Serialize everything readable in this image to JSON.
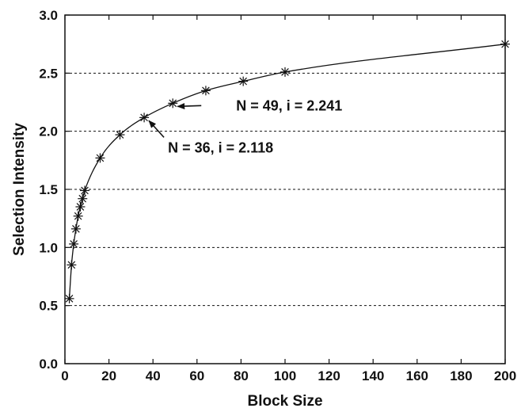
{
  "chart_data": {
    "type": "scatter",
    "xlabel": "Block Size",
    "ylabel": "Selection Intensity",
    "xlim": [
      0,
      200
    ],
    "ylim": [
      0.0,
      3.0
    ],
    "xticks": [
      "0",
      "20",
      "40",
      "60",
      "80",
      "100",
      "120",
      "140",
      "160",
      "180",
      "200"
    ],
    "yticks": [
      "0.0",
      "0.5",
      "1.0",
      "1.5",
      "2.0",
      "2.5",
      "3.0"
    ],
    "grid": "horizontal dashed",
    "points": [
      {
        "x": 2,
        "y": 0.56
      },
      {
        "x": 3,
        "y": 0.85
      },
      {
        "x": 4,
        "y": 1.03
      },
      {
        "x": 5,
        "y": 1.16
      },
      {
        "x": 6,
        "y": 1.27
      },
      {
        "x": 7,
        "y": 1.35
      },
      {
        "x": 8,
        "y": 1.42
      },
      {
        "x": 9,
        "y": 1.49
      },
      {
        "x": 16,
        "y": 1.77
      },
      {
        "x": 25,
        "y": 1.97
      },
      {
        "x": 36,
        "y": 2.118
      },
      {
        "x": 49,
        "y": 2.241
      },
      {
        "x": 64,
        "y": 2.35
      },
      {
        "x": 81,
        "y": 2.43
      },
      {
        "x": 100,
        "y": 2.51
      },
      {
        "x": 200,
        "y": 2.75
      }
    ],
    "annotations": [
      {
        "text": "N = 49,  i = 2.241",
        "x": 49,
        "y": 2.241
      },
      {
        "text": "N = 36,  i = 2.118",
        "x": 36,
        "y": 2.118
      }
    ]
  }
}
